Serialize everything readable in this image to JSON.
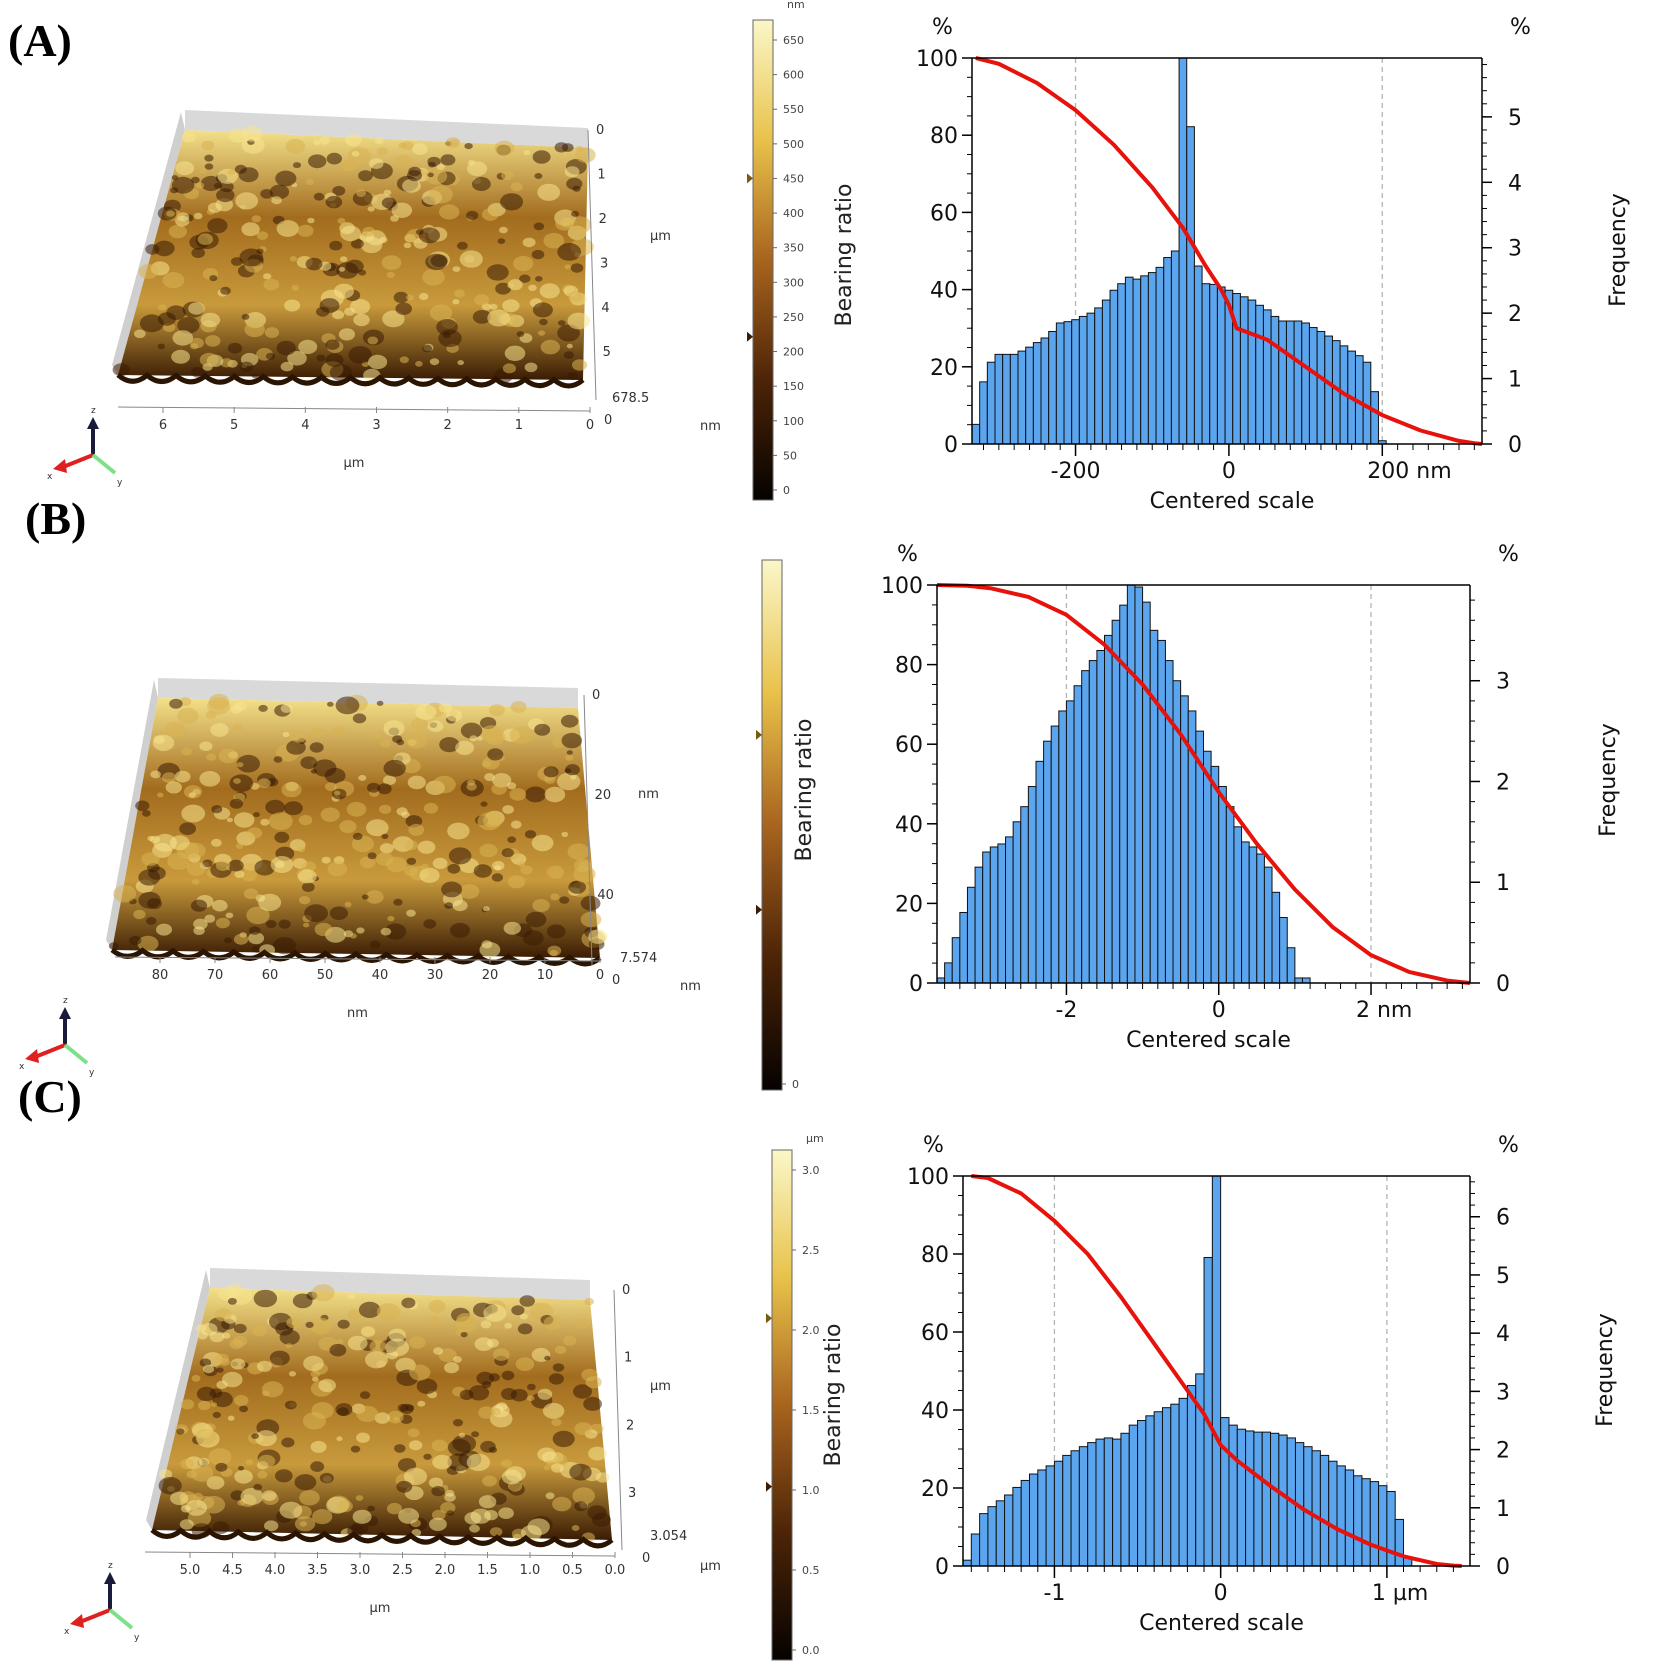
{
  "panels": [
    {
      "label": "(A)",
      "afm": {
        "y_axis": {
          "ticks": [
            "0",
            "1",
            "2",
            "3",
            "4",
            "5"
          ],
          "unit": "µm"
        },
        "x_axis": {
          "ticks": [
            "6",
            "5",
            "4",
            "3",
            "2",
            "1",
            "0"
          ],
          "unit": "µm"
        },
        "z_labels": [
          "678.5",
          "0"
        ],
        "z_unit": "nm",
        "axis_letters": [
          "z",
          "x",
          "y"
        ]
      },
      "colorbar": {
        "unit": "nm",
        "ticks": [
          "650",
          "600",
          "550",
          "500",
          "450",
          "400",
          "350",
          "300",
          "250",
          "200",
          "150",
          "100",
          "50",
          "0"
        ],
        "label": "Bearing ratio"
      }
    },
    {
      "label": "(B)",
      "afm": {
        "y_axis": {
          "ticks": [
            "0",
            "20",
            "40"
          ],
          "unit": "nm"
        },
        "x_axis": {
          "ticks": [
            "80",
            "70",
            "60",
            "50",
            "40",
            "30",
            "20",
            "10",
            "0"
          ],
          "unit": "nm"
        },
        "z_labels": [
          "7.574",
          "0"
        ],
        "z_unit": "nm",
        "axis_letters": [
          "z",
          "x",
          "y"
        ]
      },
      "colorbar": {
        "unit": "",
        "ticks": [
          "0"
        ],
        "label": "Bearing ratio"
      }
    },
    {
      "label": "(C)",
      "afm": {
        "y_axis": {
          "ticks": [
            "0",
            "1",
            "2",
            "3"
          ],
          "unit": "µm"
        },
        "x_axis": {
          "ticks": [
            "5.0",
            "4.5",
            "4.0",
            "3.5",
            "3.0",
            "2.5",
            "2.0",
            "1.5",
            "1.0",
            "0.5",
            "0.0"
          ],
          "unit": "µm"
        },
        "z_labels": [
          "3.054",
          "0"
        ],
        "z_unit": "µm",
        "axis_letters": [
          "z",
          "x",
          "y"
        ]
      },
      "colorbar": {
        "unit": "µm",
        "ticks": [
          "3.0",
          "2.5",
          "2.0",
          "1.5",
          "1.0",
          "0.5",
          "0.0"
        ],
        "label": "Bearing ratio"
      }
    }
  ],
  "colors": {
    "bar_fill": "#5aa5ee",
    "bar_stroke": "#111111",
    "curve": "#e8120c",
    "afm_dark": "#3a1c04",
    "afm_mid": "#a26c1e",
    "afm_light": "#f3e08a"
  },
  "chart_data": [
    {
      "type": "bar",
      "panel": "A",
      "title": "",
      "xlabel": "Centered scale",
      "x_unit": "nm",
      "xticks": [
        "-200",
        "0",
        "200 nm"
      ],
      "xlim": [
        -335,
        330
      ],
      "ylabel_left": "%",
      "ylabel_right": "%",
      "ylabel_right_title": "Frequency",
      "ylim_left": [
        0,
        100
      ],
      "ylim_right": [
        0,
        5.9
      ],
      "yticks_left": [
        "0",
        "20",
        "40",
        "60",
        "80",
        "100"
      ],
      "yticks_right": [
        "0",
        "1",
        "2",
        "3",
        "4",
        "5"
      ],
      "grid_dashed_x": [
        -200,
        200
      ],
      "histogram": {
        "bin_start": -335,
        "bin_width": 10,
        "frequencies": [
          0.3,
          0.95,
          1.25,
          1.37,
          1.37,
          1.37,
          1.42,
          1.48,
          1.55,
          1.62,
          1.72,
          1.85,
          1.87,
          1.9,
          1.95,
          2.0,
          2.08,
          2.2,
          2.35,
          2.45,
          2.55,
          2.52,
          2.57,
          2.62,
          2.7,
          2.85,
          2.95,
          6.0,
          4.85,
          2.72,
          2.45,
          2.44,
          2.4,
          2.35,
          2.3,
          2.25,
          2.2,
          2.12,
          2.05,
          1.95,
          1.88,
          1.88,
          1.88,
          1.85,
          1.78,
          1.72,
          1.65,
          1.58,
          1.5,
          1.42,
          1.35,
          1.25,
          0.8,
          0.05
        ]
      },
      "bearing_curve": {
        "x": [
          -330,
          -300,
          -250,
          -200,
          -150,
          -100,
          -60,
          -30,
          -10,
          0,
          10,
          50,
          100,
          150,
          200,
          250,
          300,
          320,
          330
        ],
        "y": [
          100,
          98.5,
          93.5,
          86.5,
          77.5,
          66.5,
          56,
          46,
          40,
          36,
          30,
          27,
          20,
          13,
          7.5,
          3.5,
          0.8,
          0.2,
          0
        ]
      }
    },
    {
      "type": "bar",
      "panel": "B",
      "title": "",
      "xlabel": "Centered scale",
      "x_unit": "nm",
      "xticks": [
        "-2",
        "0",
        "2 nm"
      ],
      "xlim": [
        -3.7,
        3.3
      ],
      "ylabel_left": "%",
      "ylabel_right": "%",
      "ylabel_right_title": "Frequency",
      "ylim_left": [
        0,
        100
      ],
      "ylim_right": [
        0,
        3.95
      ],
      "yticks_left": [
        "0",
        "20",
        "40",
        "60",
        "80",
        "100"
      ],
      "yticks_right": [
        "0",
        "1",
        "2",
        "3"
      ],
      "grid_dashed_x": [
        -2,
        2
      ],
      "histogram": {
        "bin_start": -3.7,
        "bin_width": 0.1,
        "frequencies": [
          0.05,
          0.2,
          0.45,
          0.7,
          0.95,
          1.15,
          1.3,
          1.35,
          1.38,
          1.45,
          1.6,
          1.75,
          1.95,
          2.2,
          2.4,
          2.55,
          2.7,
          2.8,
          2.95,
          3.1,
          3.2,
          3.3,
          3.45,
          3.6,
          3.75,
          3.95,
          3.93,
          3.78,
          3.5,
          3.4,
          3.2,
          3.0,
          2.85,
          2.7,
          2.5,
          2.3,
          2.15,
          1.95,
          1.75,
          1.55,
          1.4,
          1.35,
          1.28,
          1.15,
          0.9,
          0.65,
          0.35,
          0.05,
          0.05
        ]
      },
      "bearing_curve": {
        "x": [
          -3.7,
          -3.3,
          -3.0,
          -2.5,
          -2.0,
          -1.5,
          -1.0,
          -0.5,
          0,
          0.5,
          1.0,
          1.5,
          2.0,
          2.5,
          3.0,
          3.3
        ],
        "y": [
          100,
          99.8,
          99.2,
          97,
          92.5,
          85,
          75,
          62.5,
          48,
          35,
          23.5,
          14,
          7,
          2.8,
          0.6,
          0
        ]
      }
    },
    {
      "type": "bar",
      "panel": "C",
      "title": "",
      "xlabel": "Centered scale",
      "x_unit": "µm",
      "xticks": [
        "-1",
        "0",
        "1 µm"
      ],
      "xlim": [
        -1.55,
        1.5
      ],
      "ylabel_left": "%",
      "ylabel_right": "%",
      "ylabel_right_title": "Frequency",
      "ylim_left": [
        0,
        100
      ],
      "ylim_right": [
        0,
        6.7
      ],
      "yticks_left": [
        "0",
        "20",
        "40",
        "60",
        "80",
        "100"
      ],
      "yticks_right": [
        "0",
        "1",
        "2",
        "3",
        "4",
        "5",
        "6"
      ],
      "grid_dashed_x": [
        -1,
        1
      ],
      "histogram": {
        "bin_start": -1.55,
        "bin_width": 0.05,
        "frequencies": [
          0.1,
          0.55,
          0.9,
          1.02,
          1.12,
          1.22,
          1.35,
          1.47,
          1.58,
          1.65,
          1.72,
          1.8,
          1.9,
          1.98,
          2.05,
          2.12,
          2.18,
          2.2,
          2.18,
          2.28,
          2.42,
          2.5,
          2.58,
          2.65,
          2.72,
          2.78,
          2.88,
          3.1,
          3.3,
          5.3,
          6.8,
          2.55,
          2.42,
          2.35,
          2.32,
          2.3,
          2.3,
          2.28,
          2.25,
          2.2,
          2.12,
          2.05,
          1.98,
          1.9,
          1.8,
          1.72,
          1.65,
          1.55,
          1.5,
          1.45,
          1.38,
          1.28,
          0.8,
          0.15
        ]
      },
      "bearing_curve": {
        "x": [
          -1.5,
          -1.4,
          -1.2,
          -1.0,
          -0.8,
          -0.6,
          -0.4,
          -0.2,
          -0.1,
          0,
          0.1,
          0.3,
          0.5,
          0.7,
          0.9,
          1.1,
          1.3,
          1.4,
          1.45
        ],
        "y": [
          100,
          99.5,
          95.5,
          88.5,
          80,
          69,
          57,
          45,
          39,
          31,
          27,
          20.5,
          14.5,
          9.5,
          5.5,
          2.5,
          0.5,
          0.1,
          0
        ]
      }
    }
  ]
}
